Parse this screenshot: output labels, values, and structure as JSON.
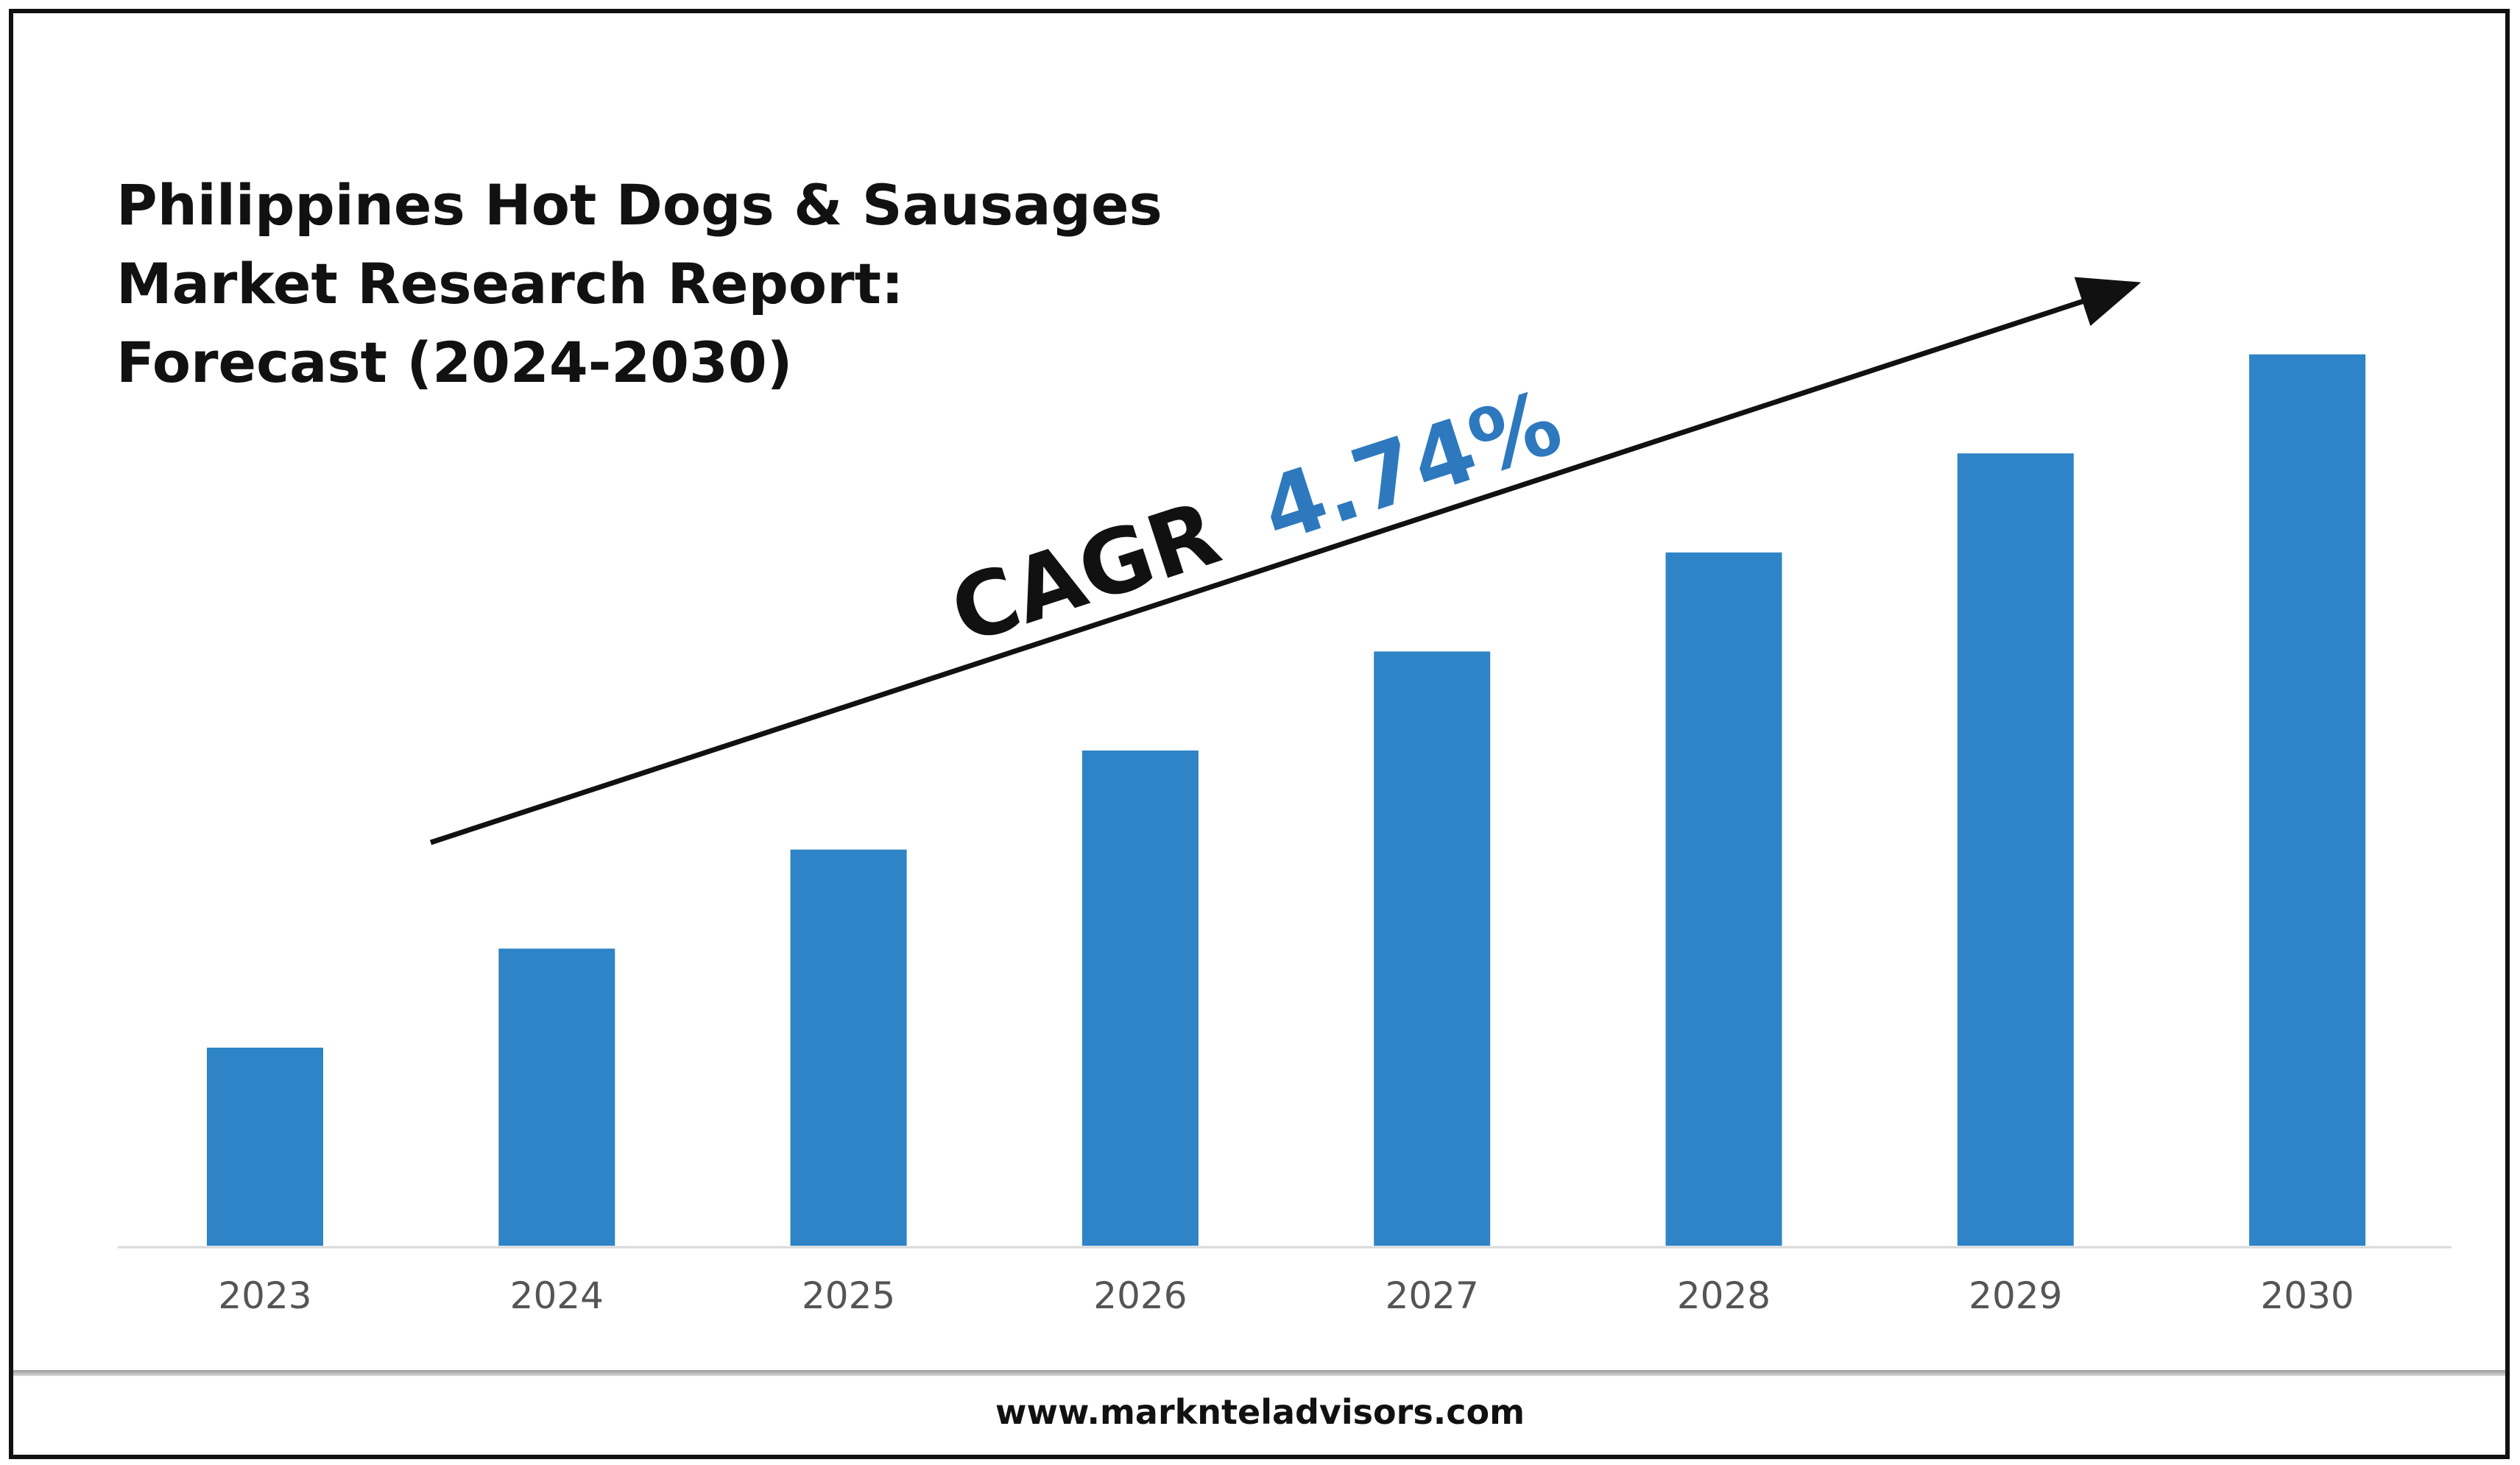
{
  "title_lines": [
    "Philippines Hot Dogs & Sausages",
    "Market Research Report:",
    "Forecast (2024-2030)"
  ],
  "annotation": {
    "label": "CAGR",
    "value": "4.74%",
    "value_color": "#2E78BE",
    "label_color": "#111111"
  },
  "footer": {
    "url": "www.marknteladvisors.com"
  },
  "chart_data": {
    "type": "bar",
    "title": "Philippines Hot Dogs & Sausages Market Research Report: Forecast (2024-2030)",
    "categories": [
      "2023",
      "2024",
      "2025",
      "2026",
      "2027",
      "2028",
      "2029",
      "2030"
    ],
    "values": [
      2,
      3,
      4,
      5,
      6,
      7,
      8,
      9
    ],
    "ylim": [
      0,
      9
    ],
    "grid": false,
    "legend": "none",
    "bar_color": "#2E84C6",
    "xlabel": "",
    "ylabel": ""
  }
}
